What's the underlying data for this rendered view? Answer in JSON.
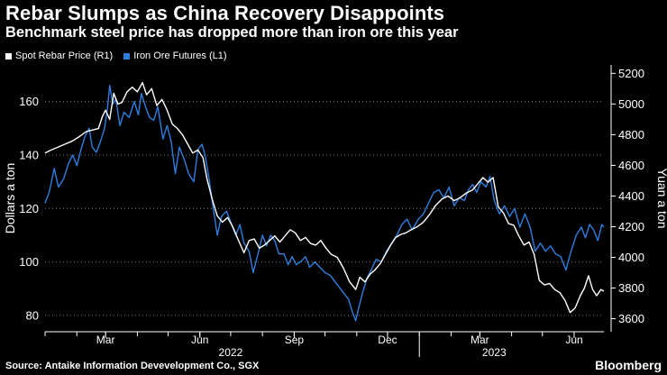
{
  "header": {
    "title": "Rebar Slumps as China Recovery Disappoints",
    "subtitle": "Benchmark steel price has dropped more than iron ore this year"
  },
  "footer": {
    "source": "Source: Antaike Information Devevelopment Co., SGX",
    "brand": "Bloomberg"
  },
  "colors": {
    "background": "#000000",
    "rebar": "#ffffff",
    "iron_ore": "#2e7fe0",
    "grid": "#7a7a7a",
    "text": "#ffffff"
  },
  "chart_data": {
    "type": "line",
    "title": "Rebar Slumps as China Recovery Disappoints",
    "subtitle": "Benchmark steel price has dropped more than iron ore this year",
    "x_start": "2022-01-01",
    "x_end": "2023-06-30",
    "x_tick_labels": [
      {
        "date": "2022-03-01",
        "label": "Mar"
      },
      {
        "date": "2022-06-01",
        "label": "Jun"
      },
      {
        "date": "2022-09-01",
        "label": "Sep"
      },
      {
        "date": "2022-12-01",
        "label": "Dec"
      },
      {
        "date": "2023-03-01",
        "label": "Mar"
      },
      {
        "date": "2023-06-01",
        "label": "Jun"
      }
    ],
    "year_labels": [
      {
        "label": "2022",
        "date": "2022-07-01"
      },
      {
        "label": "2023",
        "date": "2023-03-15"
      }
    ],
    "year_divider_date": "2023-01-01",
    "left_axis": {
      "label": "Dollars a ton",
      "min": 73.9,
      "max": 173.7,
      "ticks": [
        80,
        100,
        120,
        140,
        160
      ]
    },
    "right_axis": {
      "label": "Yuan a ton",
      "min": 3515,
      "max": 5255,
      "ticks": [
        3600,
        3800,
        4000,
        4200,
        4400,
        4600,
        4800,
        5000,
        5200
      ]
    },
    "legend": [
      {
        "name": "Spot Rebar Price (R1)",
        "series": "rebar"
      },
      {
        "name": "Iron Ore Futures (L1)",
        "series": "iron_ore"
      }
    ],
    "series": [
      {
        "key": "iron_ore",
        "name": "Iron Ore Futures (L1)",
        "axis": "left",
        "unit": "USD/ton",
        "points": [
          [
            "2022-01-01",
            122
          ],
          [
            "2022-01-05",
            126
          ],
          [
            "2022-01-10",
            135
          ],
          [
            "2022-01-14",
            128
          ],
          [
            "2022-01-19",
            131
          ],
          [
            "2022-01-24",
            137
          ],
          [
            "2022-01-28",
            140
          ],
          [
            "2022-02-01",
            136
          ],
          [
            "2022-02-05",
            142
          ],
          [
            "2022-02-09",
            147
          ],
          [
            "2022-02-13",
            150
          ],
          [
            "2022-02-16",
            143
          ],
          [
            "2022-02-20",
            141
          ],
          [
            "2022-02-24",
            145
          ],
          [
            "2022-02-28",
            150
          ],
          [
            "2022-03-03",
            158
          ],
          [
            "2022-03-05",
            166
          ],
          [
            "2022-03-08",
            159
          ],
          [
            "2022-03-11",
            161
          ],
          [
            "2022-03-15",
            151
          ],
          [
            "2022-03-19",
            156
          ],
          [
            "2022-03-24",
            154
          ],
          [
            "2022-03-29",
            160
          ],
          [
            "2022-04-02",
            155
          ],
          [
            "2022-04-05",
            163
          ],
          [
            "2022-04-09",
            158
          ],
          [
            "2022-04-13",
            154
          ],
          [
            "2022-04-17",
            153
          ],
          [
            "2022-04-21",
            158
          ],
          [
            "2022-04-26",
            146
          ],
          [
            "2022-04-30",
            151
          ],
          [
            "2022-05-04",
            145
          ],
          [
            "2022-05-08",
            133
          ],
          [
            "2022-05-12",
            143
          ],
          [
            "2022-05-17",
            138
          ],
          [
            "2022-05-21",
            133
          ],
          [
            "2022-05-26",
            130
          ],
          [
            "2022-05-30",
            142
          ],
          [
            "2022-06-03",
            144
          ],
          [
            "2022-06-06",
            140
          ],
          [
            "2022-06-10",
            131
          ],
          [
            "2022-06-14",
            120
          ],
          [
            "2022-06-18",
            110
          ],
          [
            "2022-06-22",
            117
          ],
          [
            "2022-06-27",
            119
          ],
          [
            "2022-07-01",
            115
          ],
          [
            "2022-07-06",
            110
          ],
          [
            "2022-07-10",
            114
          ],
          [
            "2022-07-14",
            107
          ],
          [
            "2022-07-19",
            104
          ],
          [
            "2022-07-23",
            96
          ],
          [
            "2022-07-27",
            102
          ],
          [
            "2022-08-01",
            110
          ],
          [
            "2022-08-05",
            106
          ],
          [
            "2022-08-09",
            110
          ],
          [
            "2022-08-13",
            108
          ],
          [
            "2022-08-17",
            103
          ],
          [
            "2022-08-22",
            103
          ],
          [
            "2022-08-26",
            99
          ],
          [
            "2022-08-30",
            102
          ],
          [
            "2022-09-03",
            99
          ],
          [
            "2022-09-07",
            100
          ],
          [
            "2022-09-12",
            102
          ],
          [
            "2022-09-16",
            98
          ],
          [
            "2022-09-21",
            100
          ],
          [
            "2022-09-26",
            98
          ],
          [
            "2022-10-01",
            96
          ],
          [
            "2022-10-06",
            95
          ],
          [
            "2022-10-12",
            92
          ],
          [
            "2022-10-18",
            89
          ],
          [
            "2022-10-24",
            86
          ],
          [
            "2022-10-28",
            81
          ],
          [
            "2022-10-31",
            78
          ],
          [
            "2022-11-03",
            83
          ],
          [
            "2022-11-07",
            89
          ],
          [
            "2022-11-11",
            94
          ],
          [
            "2022-11-15",
            97
          ],
          [
            "2022-11-20",
            101
          ],
          [
            "2022-11-25",
            100
          ],
          [
            "2022-11-30",
            104
          ],
          [
            "2022-12-05",
            107
          ],
          [
            "2022-12-10",
            110
          ],
          [
            "2022-12-15",
            114
          ],
          [
            "2022-12-20",
            116
          ],
          [
            "2022-12-25",
            112
          ],
          [
            "2022-12-31",
            116
          ],
          [
            "2023-01-05",
            118
          ],
          [
            "2023-01-10",
            122
          ],
          [
            "2023-01-15",
            126
          ],
          [
            "2023-01-20",
            127
          ],
          [
            "2023-01-25",
            124
          ],
          [
            "2023-01-30",
            128
          ],
          [
            "2023-02-04",
            121
          ],
          [
            "2023-02-09",
            124
          ],
          [
            "2023-02-14",
            123
          ],
          [
            "2023-02-18",
            127
          ],
          [
            "2023-02-22",
            129
          ],
          [
            "2023-02-26",
            126
          ],
          [
            "2023-03-02",
            130
          ],
          [
            "2023-03-07",
            128
          ],
          [
            "2023-03-11",
            132
          ],
          [
            "2023-03-15",
            123
          ],
          [
            "2023-03-20",
            118
          ],
          [
            "2023-03-25",
            121
          ],
          [
            "2023-03-30",
            117
          ],
          [
            "2023-04-04",
            120
          ],
          [
            "2023-04-09",
            113
          ],
          [
            "2023-04-14",
            118
          ],
          [
            "2023-04-19",
            113
          ],
          [
            "2023-04-24",
            104
          ],
          [
            "2023-04-29",
            107
          ],
          [
            "2023-05-04",
            104
          ],
          [
            "2023-05-09",
            106
          ],
          [
            "2023-05-14",
            103
          ],
          [
            "2023-05-19",
            102
          ],
          [
            "2023-05-24",
            97
          ],
          [
            "2023-05-29",
            104
          ],
          [
            "2023-06-03",
            110
          ],
          [
            "2023-06-08",
            113
          ],
          [
            "2023-06-12",
            109
          ],
          [
            "2023-06-16",
            114
          ],
          [
            "2023-06-20",
            112
          ],
          [
            "2023-06-24",
            108
          ],
          [
            "2023-06-28",
            114
          ],
          [
            "2023-06-30",
            113
          ]
        ]
      },
      {
        "key": "rebar",
        "name": "Spot Rebar Price (R1)",
        "axis": "right",
        "unit": "CNY/ton",
        "points": [
          [
            "2022-01-01",
            4680
          ],
          [
            "2022-01-07",
            4700
          ],
          [
            "2022-01-14",
            4720
          ],
          [
            "2022-01-21",
            4740
          ],
          [
            "2022-01-28",
            4760
          ],
          [
            "2022-02-04",
            4790
          ],
          [
            "2022-02-10",
            4820
          ],
          [
            "2022-02-16",
            4830
          ],
          [
            "2022-02-22",
            4840
          ],
          [
            "2022-02-26",
            4920
          ],
          [
            "2022-03-01",
            4960
          ],
          [
            "2022-03-05",
            4900
          ],
          [
            "2022-03-09",
            5070
          ],
          [
            "2022-03-13",
            5000
          ],
          [
            "2022-03-17",
            5010
          ],
          [
            "2022-03-22",
            5080
          ],
          [
            "2022-03-27",
            5110
          ],
          [
            "2022-04-01",
            5080
          ],
          [
            "2022-04-06",
            5140
          ],
          [
            "2022-04-10",
            5060
          ],
          [
            "2022-04-15",
            5100
          ],
          [
            "2022-04-20",
            4990
          ],
          [
            "2022-04-25",
            5030
          ],
          [
            "2022-04-30",
            4960
          ],
          [
            "2022-05-05",
            4870
          ],
          [
            "2022-05-10",
            4840
          ],
          [
            "2022-05-15",
            4800
          ],
          [
            "2022-05-20",
            4740
          ],
          [
            "2022-05-25",
            4680
          ],
          [
            "2022-05-30",
            4700
          ],
          [
            "2022-06-04",
            4650
          ],
          [
            "2022-06-08",
            4510
          ],
          [
            "2022-06-13",
            4380
          ],
          [
            "2022-06-18",
            4270
          ],
          [
            "2022-06-23",
            4230
          ],
          [
            "2022-06-28",
            4260
          ],
          [
            "2022-07-03",
            4200
          ],
          [
            "2022-07-08",
            4120
          ],
          [
            "2022-07-14",
            4030
          ],
          [
            "2022-07-19",
            4110
          ],
          [
            "2022-07-24",
            4120
          ],
          [
            "2022-07-29",
            4060
          ],
          [
            "2022-08-03",
            4080
          ],
          [
            "2022-08-08",
            4110
          ],
          [
            "2022-08-13",
            4140
          ],
          [
            "2022-08-18",
            4100
          ],
          [
            "2022-08-23",
            4140
          ],
          [
            "2022-08-28",
            4180
          ],
          [
            "2022-09-02",
            4160
          ],
          [
            "2022-09-07",
            4110
          ],
          [
            "2022-09-12",
            4130
          ],
          [
            "2022-09-17",
            4090
          ],
          [
            "2022-09-22",
            4080
          ],
          [
            "2022-09-27",
            4110
          ],
          [
            "2022-10-02",
            4060
          ],
          [
            "2022-10-07",
            4020
          ],
          [
            "2022-10-13",
            4000
          ],
          [
            "2022-10-19",
            3930
          ],
          [
            "2022-10-25",
            3840
          ],
          [
            "2022-10-31",
            3790
          ],
          [
            "2022-11-04",
            3870
          ],
          [
            "2022-11-09",
            3840
          ],
          [
            "2022-11-14",
            3890
          ],
          [
            "2022-11-19",
            3920
          ],
          [
            "2022-11-24",
            3960
          ],
          [
            "2022-11-29",
            4020
          ],
          [
            "2022-12-04",
            4080
          ],
          [
            "2022-12-09",
            4130
          ],
          [
            "2022-12-14",
            4150
          ],
          [
            "2022-12-19",
            4160
          ],
          [
            "2022-12-24",
            4180
          ],
          [
            "2022-12-30",
            4200
          ],
          [
            "2023-01-05",
            4230
          ],
          [
            "2023-01-11",
            4280
          ],
          [
            "2023-01-17",
            4340
          ],
          [
            "2023-01-23",
            4380
          ],
          [
            "2023-01-29",
            4400
          ],
          [
            "2023-02-04",
            4370
          ],
          [
            "2023-02-10",
            4390
          ],
          [
            "2023-02-16",
            4420
          ],
          [
            "2023-02-22",
            4440
          ],
          [
            "2023-02-27",
            4480
          ],
          [
            "2023-03-04",
            4520
          ],
          [
            "2023-03-09",
            4490
          ],
          [
            "2023-03-14",
            4520
          ],
          [
            "2023-03-19",
            4330
          ],
          [
            "2023-03-24",
            4290
          ],
          [
            "2023-03-29",
            4220
          ],
          [
            "2023-04-03",
            4210
          ],
          [
            "2023-04-08",
            4140
          ],
          [
            "2023-04-13",
            4080
          ],
          [
            "2023-04-18",
            4100
          ],
          [
            "2023-04-23",
            4020
          ],
          [
            "2023-04-28",
            3850
          ],
          [
            "2023-05-03",
            3820
          ],
          [
            "2023-05-08",
            3830
          ],
          [
            "2023-05-13",
            3790
          ],
          [
            "2023-05-18",
            3770
          ],
          [
            "2023-05-23",
            3720
          ],
          [
            "2023-05-28",
            3640
          ],
          [
            "2023-06-02",
            3670
          ],
          [
            "2023-06-07",
            3750
          ],
          [
            "2023-06-11",
            3800
          ],
          [
            "2023-06-15",
            3880
          ],
          [
            "2023-06-19",
            3790
          ],
          [
            "2023-06-23",
            3750
          ],
          [
            "2023-06-27",
            3790
          ],
          [
            "2023-06-30",
            3780
          ]
        ]
      }
    ]
  }
}
